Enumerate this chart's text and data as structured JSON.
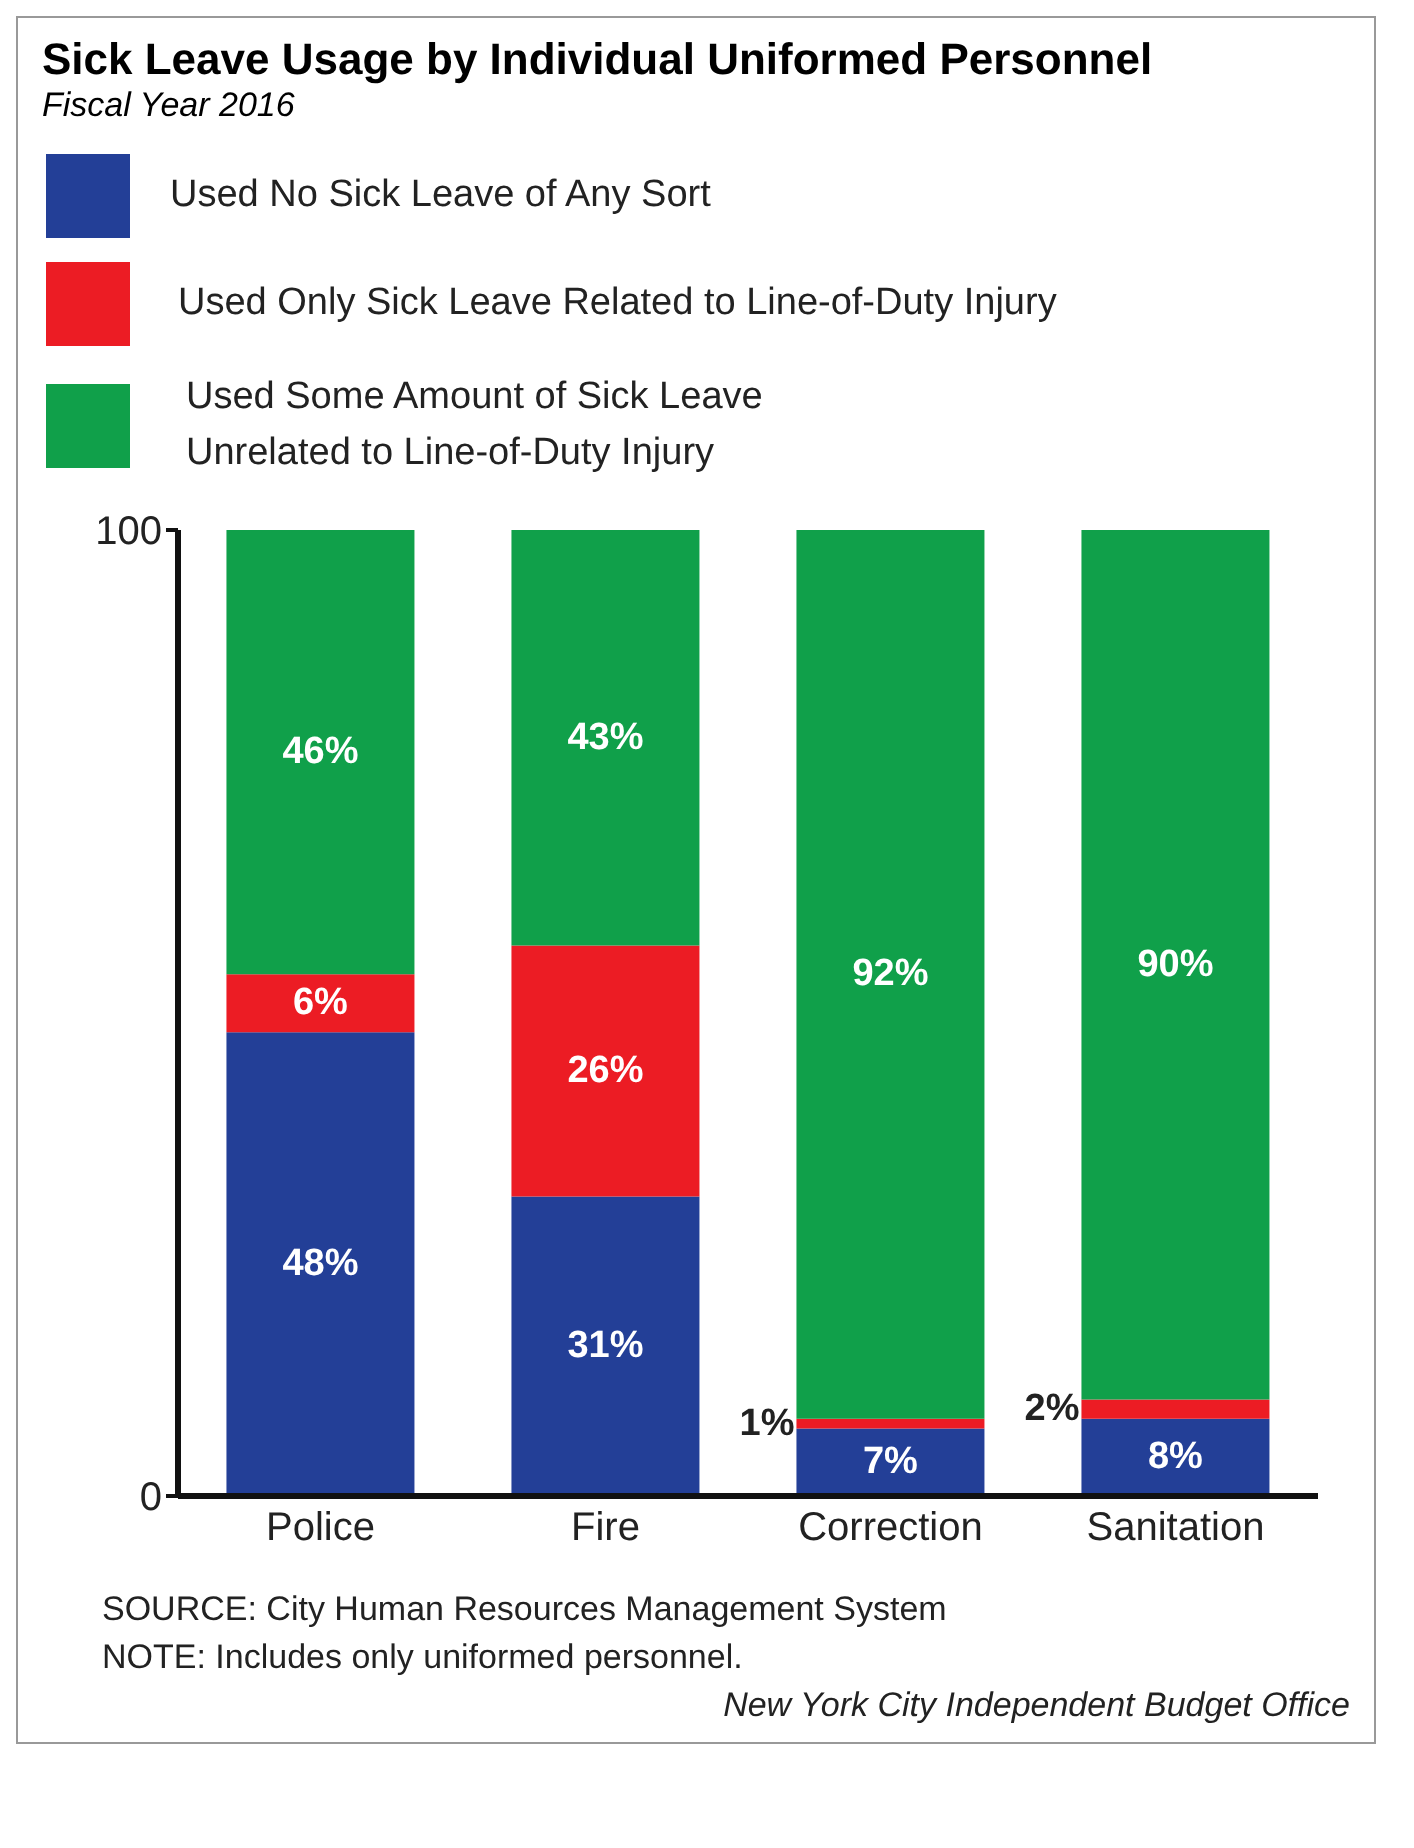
{
  "chart_data": {
    "type": "bar",
    "title": "Sick Leave Usage by Individual Uniformed Personnel",
    "subtitle": "Fiscal Year 2016",
    "categories": [
      "Police",
      "Fire",
      "Correction",
      "Sanitation"
    ],
    "stacked": true,
    "ylim": [
      0,
      100
    ],
    "yticks": [
      0,
      100
    ],
    "grid": false,
    "legend": "top",
    "series": [
      {
        "name": "Used No Sick Leave of Any Sort",
        "color": "#233f97",
        "values": [
          48,
          31,
          7,
          8
        ],
        "value_labels": [
          "48%",
          "31%",
          "7%",
          "8%"
        ]
      },
      {
        "name": "Used Only Sick Leave Related to Line-of-Duty Injury",
        "color": "#ec1c24",
        "values": [
          6,
          26,
          1,
          2
        ],
        "value_labels": [
          "6%",
          "26%",
          "1%",
          "2%"
        ]
      },
      {
        "name": "Used Some Amount of Sick Leave Unrelated to Line-of-Duty Injury",
        "color": "#10a04a",
        "values": [
          46,
          43,
          92,
          90
        ],
        "value_labels": [
          "46%",
          "43%",
          "92%",
          "90%"
        ]
      }
    ],
    "annotations": [
      "SOURCE: City Human Resources Management System",
      "NOTE: Includes only uniformed personnel.",
      "New York City Independent Budget Office"
    ]
  }
}
